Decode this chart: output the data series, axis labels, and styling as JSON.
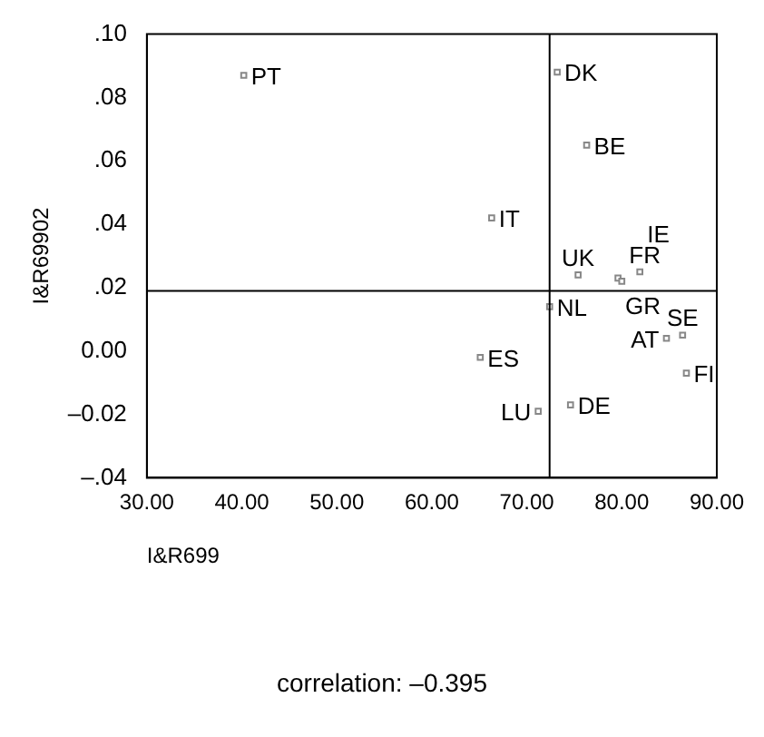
{
  "chart_data": {
    "type": "scatter",
    "xlabel": "I&R699",
    "ylabel": "I&R69902",
    "x": [
      40.2,
      73.2,
      76.3,
      66.3,
      75.4,
      79.6,
      80.0,
      81.9,
      72.4,
      65.1,
      84.7,
      86.4,
      86.8,
      74.6,
      71.2
    ],
    "series": [
      {
        "color": "#888888",
        "values": [
          0.087,
          0.088,
          0.065,
          0.042,
          0.024,
          0.023,
          0.022,
          0.025,
          0.014,
          -0.002,
          0.004,
          0.005,
          -0.007,
          -0.017,
          -0.019
        ]
      }
    ],
    "marker": "square",
    "grid": false,
    "legend": false,
    "xlim": [
      30,
      90
    ],
    "xticks": [
      {
        "value": 30,
        "label": "30.00"
      },
      {
        "value": 40,
        "label": "40.00"
      },
      {
        "value": 50,
        "label": "50.00"
      },
      {
        "value": 60,
        "label": "60.00"
      },
      {
        "value": 70,
        "label": "70.00"
      },
      {
        "value": 80,
        "label": "80.00"
      },
      {
        "value": 90,
        "label": "90.00"
      }
    ],
    "ylim": [
      -0.04,
      0.1
    ],
    "yticks": [
      {
        "value": -0.04,
        "label": "–.04"
      },
      {
        "value": -0.02,
        "label": "–0.02"
      },
      {
        "value": 0,
        "label": "0.00"
      },
      {
        "value": 0.02,
        "label": ".02"
      },
      {
        "value": 0.04,
        "label": ".04"
      },
      {
        "value": 0.06,
        "label": ".06"
      },
      {
        "value": 0.08,
        "label": ".08"
      },
      {
        "value": 0.1,
        "label": ".10"
      }
    ],
    "ref_lines": [
      {
        "axis": "x",
        "value": 72.4,
        "color": "#000000"
      },
      {
        "axis": "y",
        "value": 0.019,
        "color": "#000000"
      }
    ],
    "annotations": [
      {
        "text": "PT",
        "x": 40.2,
        "y": 0.087
      },
      {
        "text": "DK",
        "x": 73.2,
        "y": 0.088
      },
      {
        "text": "BE",
        "x": 76.3,
        "y": 0.065
      },
      {
        "text": "IT",
        "x": 66.3,
        "y": 0.042
      },
      {
        "text": "UK",
        "x": 75.4,
        "y": 0.024
      },
      {
        "text": "GR",
        "x": 79.6,
        "y": 0.023
      },
      {
        "text": "FR",
        "x": 80.0,
        "y": 0.022
      },
      {
        "text": "IE",
        "x": 81.9,
        "y": 0.025
      },
      {
        "text": "NL",
        "x": 72.4,
        "y": 0.014
      },
      {
        "text": "ES",
        "x": 65.1,
        "y": -0.002
      },
      {
        "text": "AT",
        "x": 84.7,
        "y": 0.004
      },
      {
        "text": "SE",
        "x": 86.4,
        "y": 0.005
      },
      {
        "text": "FI",
        "x": 86.8,
        "y": -0.007
      },
      {
        "text": "DE",
        "x": 74.6,
        "y": -0.017
      },
      {
        "text": "LU",
        "x": 71.2,
        "y": -0.019
      },
      "correlation: –0.395"
    ]
  }
}
